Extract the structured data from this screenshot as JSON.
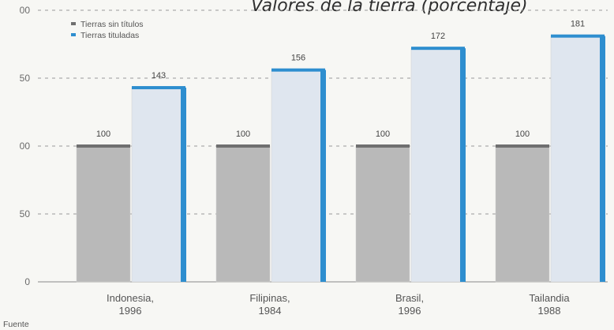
{
  "chart_data": {
    "type": "bar",
    "title": "Valores de la tierra (porcentaje)",
    "categories": [
      [
        "Indonesia,",
        "1996"
      ],
      [
        "Filipinas,",
        "1984"
      ],
      [
        "Brasil,",
        "1996"
      ],
      [
        "Tailandia",
        "1988"
      ]
    ],
    "series": [
      {
        "name": "Tierras sin títulos",
        "values": [
          100,
          100,
          100,
          100
        ],
        "color": "#b9b9b9",
        "cap_color": "#6f6f6f"
      },
      {
        "name": "Tierras tituladas",
        "values": [
          143,
          156,
          172,
          181
        ],
        "color": "#dfe6ef",
        "cap_color": "#2e8ecf"
      }
    ],
    "y_ticks": [
      "0",
      "50",
      "00",
      "50",
      "00"
    ],
    "ylim": [
      0,
      200
    ],
    "grid": true,
    "legend_position": "top-left",
    "source_text": "Fuente"
  }
}
